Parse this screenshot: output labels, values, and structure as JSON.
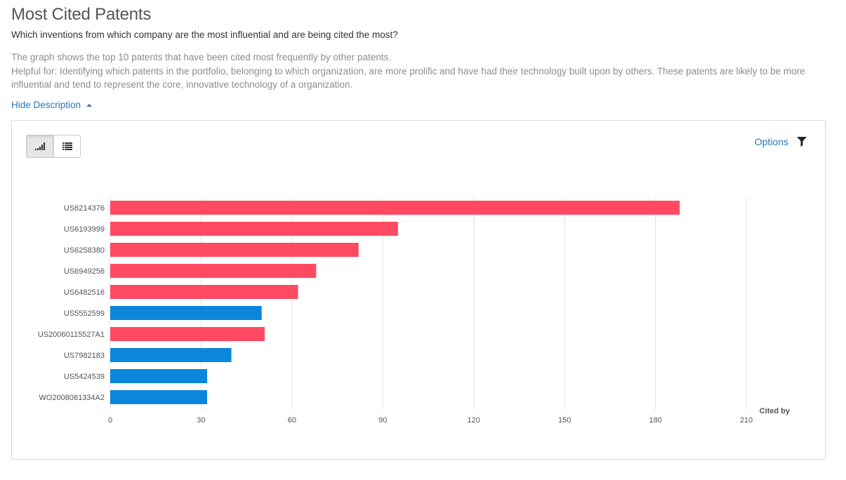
{
  "header": {
    "title": "Most Cited Patents",
    "subtitle": "Which inventions from which company are the most influential and are being cited the most?",
    "description_line1": "The graph shows the top 10 patents that have been cited most frequently by other patents.",
    "description_line2": "Helpful for: Identifying which patents in the portfolio, belonging to which organization, are more prolific and have had their technology built upon by others. These patents are likely to be more influential and tend to represent the core, innovative technology of a organization.",
    "hide_description_label": "Hide Description"
  },
  "toolbar": {
    "chart_view_icon": "bar-chart-icon",
    "list_view_icon": "list-icon",
    "options_label": "Options",
    "filter_icon": "funnel-icon"
  },
  "colors": {
    "red": "#ff4a62",
    "blue": "#0a86db",
    "link": "#2577b5"
  },
  "chart_data": {
    "type": "bar",
    "orientation": "horizontal",
    "categories": [
      "US6214376",
      "US6193999",
      "US6258380",
      "US6949256",
      "US6482516",
      "US5552599",
      "US20060115527A1",
      "US7982183",
      "US5424539",
      "WO2008081334A2"
    ],
    "values": [
      188,
      95,
      82,
      68,
      62,
      50,
      51,
      40,
      32,
      32
    ],
    "bar_colors": [
      "red",
      "red",
      "red",
      "red",
      "red",
      "blue",
      "red",
      "blue",
      "blue",
      "blue"
    ],
    "xticks": [
      0,
      30,
      60,
      90,
      120,
      150,
      180,
      210
    ],
    "xlim": [
      0,
      210
    ],
    "xlabel": "Cited by",
    "grid": true
  }
}
